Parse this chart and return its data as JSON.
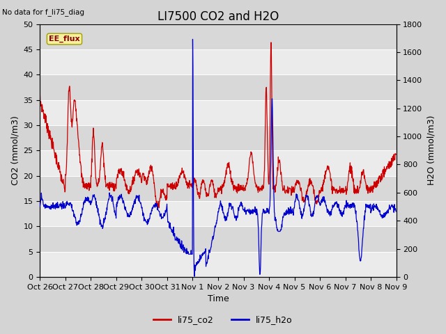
{
  "title": "LI7500 CO2 and H2O",
  "xlabel": "Time",
  "ylabel_left": "CO2 (mmol/m3)",
  "ylabel_right": "H2O (mmol/m3)",
  "ylim_left": [
    0,
    50
  ],
  "ylim_right": [
    0,
    1800
  ],
  "fig_bg_color": "#d4d4d4",
  "plot_bg_color": "#e8e8e8",
  "band_color_dark": "#d8d8d8",
  "band_color_light": "#ebebeb",
  "grid_color": "#ffffff",
  "legend_items": [
    "li75_co2",
    "li75_h2o"
  ],
  "co2_color": "#cc0000",
  "h2o_color": "#0000cc",
  "ee_flux_label": "EE_flux",
  "no_data_text": "No data for f_li75_diag",
  "xtick_labels": [
    "Oct 26",
    "Oct 27",
    "Oct 28",
    "Oct 29",
    "Oct 30",
    "Oct 31",
    "Nov 1",
    "Nov 2",
    "Nov 3",
    "Nov 4",
    "Nov 5",
    "Nov 6",
    "Nov 7",
    "Nov 8",
    "Nov 9"
  ],
  "title_fontsize": 12,
  "axis_fontsize": 9,
  "tick_fontsize": 8,
  "yticks_left": [
    0,
    5,
    10,
    15,
    20,
    25,
    30,
    35,
    40,
    45,
    50
  ],
  "yticks_right": [
    0,
    200,
    400,
    600,
    800,
    1000,
    1200,
    1400,
    1600,
    1800
  ]
}
